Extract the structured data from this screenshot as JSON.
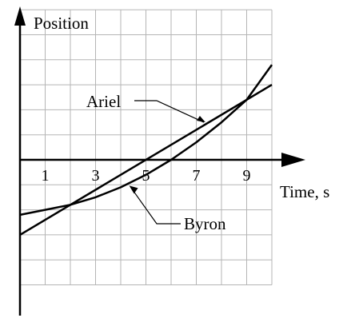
{
  "chart_data": {
    "type": "line",
    "ylabel": "Position",
    "xlabel": "Time, s",
    "xlim": [
      0,
      10
    ],
    "ylim": [
      -6,
      6
    ],
    "grid": true,
    "x_ticks": [
      1,
      3,
      5,
      7,
      9
    ],
    "series": [
      {
        "name": "Ariel",
        "x": [
          0,
          10
        ],
        "y": [
          -3.0,
          3.0
        ]
      },
      {
        "name": "Byron",
        "x": [
          0,
          1,
          2,
          3,
          4,
          5,
          6,
          7,
          8,
          9,
          10
        ],
        "y": [
          -2.2,
          -2.0,
          -1.8,
          -1.5,
          -1.1,
          -0.6,
          0.0,
          0.7,
          1.5,
          2.4,
          3.8
        ]
      }
    ],
    "intersections": [
      {
        "x": 2,
        "y": -1.8
      },
      {
        "x": 9,
        "y": 2.4
      }
    ]
  }
}
